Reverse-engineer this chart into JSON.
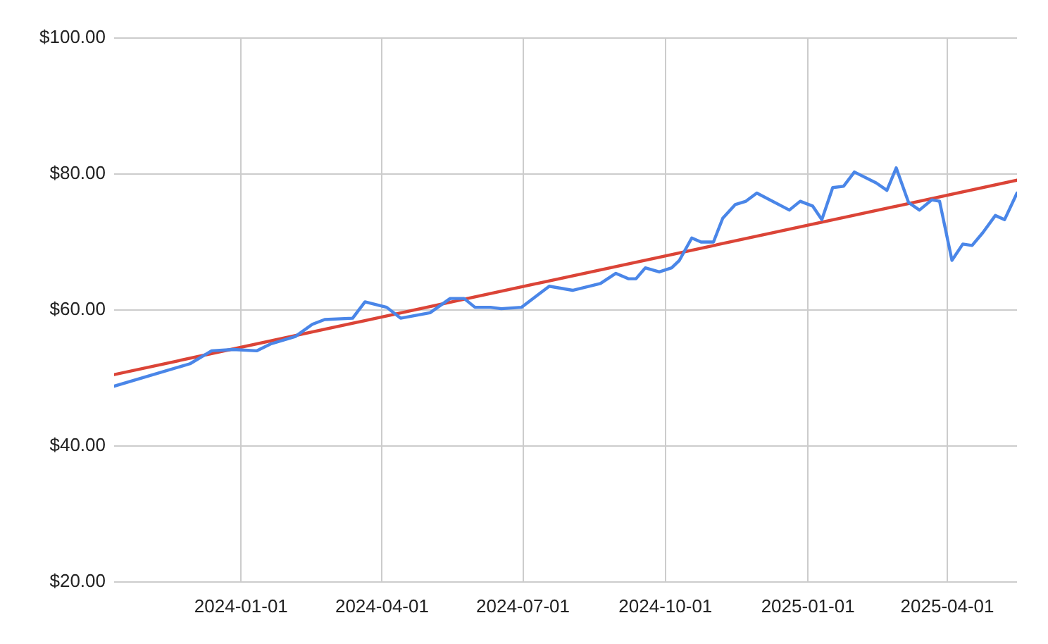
{
  "chart_data": {
    "type": "line",
    "xlim": [
      "2023-10-11",
      "2025-05-16"
    ],
    "xticks": [
      "2024-01-01",
      "2024-04-01",
      "2024-07-01",
      "2024-10-01",
      "2025-01-01",
      "2025-04-01"
    ],
    "ylim": [
      20,
      100
    ],
    "yticks": [
      {
        "value": 20,
        "label": "$20.00"
      },
      {
        "value": 40,
        "label": "$40.00"
      },
      {
        "value": 60,
        "label": "$60.00"
      },
      {
        "value": 80,
        "label": "$80.00"
      },
      {
        "value": 100,
        "label": "$100.00"
      }
    ],
    "grid": true,
    "legend": false,
    "marker": "none",
    "line_style": "solid",
    "series": [
      {
        "color": "#4a86e8",
        "x": [
          "2023-10-11",
          "2023-11-29",
          "2023-12-13",
          "2023-12-27",
          "2024-01-11",
          "2024-01-20",
          "2024-02-05",
          "2024-02-16",
          "2024-02-24",
          "2024-03-13",
          "2024-03-21",
          "2024-04-04",
          "2024-04-13",
          "2024-05-02",
          "2024-05-15",
          "2024-05-24",
          "2024-05-31",
          "2024-06-10",
          "2024-06-17",
          "2024-06-30",
          "2024-07-18",
          "2024-08-02",
          "2024-08-20",
          "2024-08-30",
          "2024-09-07",
          "2024-09-12",
          "2024-09-18",
          "2024-09-27",
          "2024-10-05",
          "2024-10-10",
          "2024-10-18",
          "2024-10-24",
          "2024-11-01",
          "2024-11-07",
          "2024-11-15",
          "2024-11-22",
          "2024-11-29",
          "2024-12-20",
          "2024-12-27",
          "2025-01-04",
          "2025-01-10",
          "2025-01-17",
          "2025-01-24",
          "2025-01-31",
          "2025-02-14",
          "2025-02-21",
          "2025-02-27",
          "2025-03-07",
          "2025-03-14",
          "2025-03-22",
          "2025-03-27",
          "2025-04-04",
          "2025-04-11",
          "2025-04-17",
          "2025-04-24",
          "2025-05-02",
          "2025-05-08",
          "2025-05-16"
        ],
        "values": [
          48.8,
          52.1,
          54.0,
          54.2,
          54.0,
          55.0,
          56.1,
          57.9,
          58.6,
          58.8,
          61.2,
          60.4,
          58.8,
          59.6,
          61.7,
          61.7,
          60.4,
          60.4,
          60.2,
          60.4,
          63.5,
          62.9,
          63.9,
          65.4,
          64.6,
          64.6,
          66.2,
          65.6,
          66.2,
          67.3,
          70.6,
          70.0,
          70.0,
          73.5,
          75.5,
          76.0,
          77.2,
          74.7,
          76.0,
          75.3,
          73.3,
          78.0,
          78.2,
          80.3,
          78.7,
          77.6,
          80.9,
          75.8,
          74.7,
          76.2,
          76.0,
          67.3,
          69.7,
          69.5,
          71.4,
          73.9,
          73.3,
          77.2
        ]
      },
      {
        "type": "line",
        "color": "#db4437",
        "x": [
          "2023-10-11",
          "2025-05-16"
        ],
        "values": [
          50.5,
          79.1
        ]
      }
    ]
  }
}
